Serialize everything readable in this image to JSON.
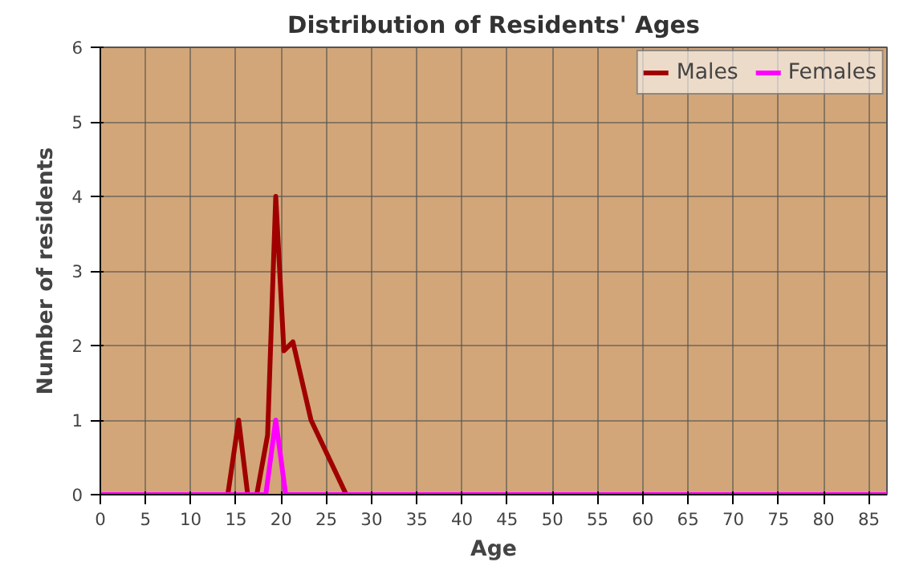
{
  "chart_data": {
    "type": "line",
    "title": "Distribution of Residents' Ages",
    "xlabel": "Age",
    "ylabel": "Number of residents",
    "xlim": [
      0,
      87
    ],
    "xticks": [
      0,
      5,
      10,
      15,
      20,
      25,
      30,
      35,
      40,
      45,
      50,
      55,
      60,
      65,
      70,
      75,
      80,
      85
    ],
    "ylim": [
      0,
      6
    ],
    "yticks": [
      0,
      1,
      2,
      3,
      4,
      5,
      6
    ],
    "grid": true,
    "legend": "top right",
    "line_style": "solid",
    "marker": "none",
    "series": [
      {
        "name": "Males",
        "color": "#a00000",
        "x": [
          0,
          14.1,
          15.3,
          16.3,
          17.3,
          18.5,
          19.4,
          20.3,
          21.3,
          23.3,
          27.2,
          87
        ],
        "values": [
          0,
          0,
          1,
          0,
          0,
          0.8,
          4,
          1.93,
          2.05,
          1,
          0,
          0
        ]
      },
      {
        "name": "Females",
        "color": "#ff00ff",
        "x": [
          0,
          18.3,
          19.4,
          20.5,
          87
        ],
        "values": [
          0,
          0,
          1,
          0,
          0
        ]
      }
    ]
  }
}
